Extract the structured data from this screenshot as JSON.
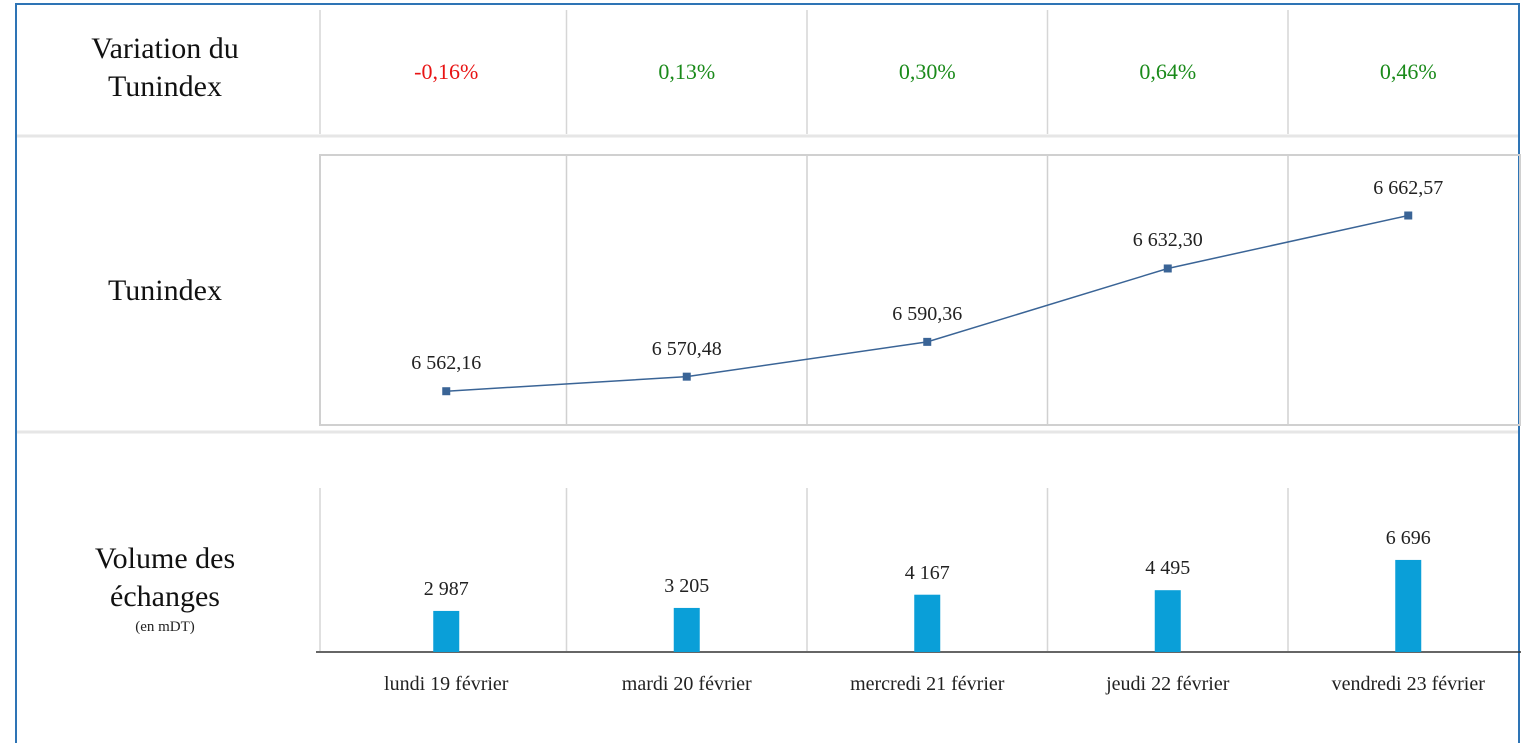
{
  "variation": {
    "label": "Variation du Tunindex",
    "values": [
      -0.16,
      0.13,
      0.3,
      0.64,
      0.46
    ],
    "value_labels": [
      "-0,16%",
      "0,13%",
      "0,30%",
      "0,64%",
      "0,46%"
    ],
    "positive_color": "#1a8a1a",
    "negative_color": "#e81414"
  },
  "chart_data": [
    {
      "type": "line",
      "title": "Tunindex",
      "values": [
        6562.16,
        6570.48,
        6590.36,
        6632.3,
        6662.57
      ],
      "value_labels": [
        "6 562,16",
        "6 570,48",
        "6 590,36",
        "6 632,30",
        "6 662,57"
      ],
      "color": "#3a6496",
      "ylim": [
        6540,
        6700
      ],
      "grid": true
    },
    {
      "type": "bar",
      "title": "Volume des échanges",
      "subtitle": "(en mDT)",
      "categories": [
        "lundi 19 février",
        "mardi 20 février",
        "mercredi 21 février",
        "jeudi 22 février",
        "vendredi 23 février"
      ],
      "values": [
        2987,
        3205,
        4167,
        4495,
        6696
      ],
      "value_labels": [
        "2 987",
        "3 205",
        "4 167",
        "4 495",
        "6 696"
      ],
      "color": "#0a9fd8",
      "ylim": [
        0,
        12000
      ],
      "grid": true
    }
  ]
}
